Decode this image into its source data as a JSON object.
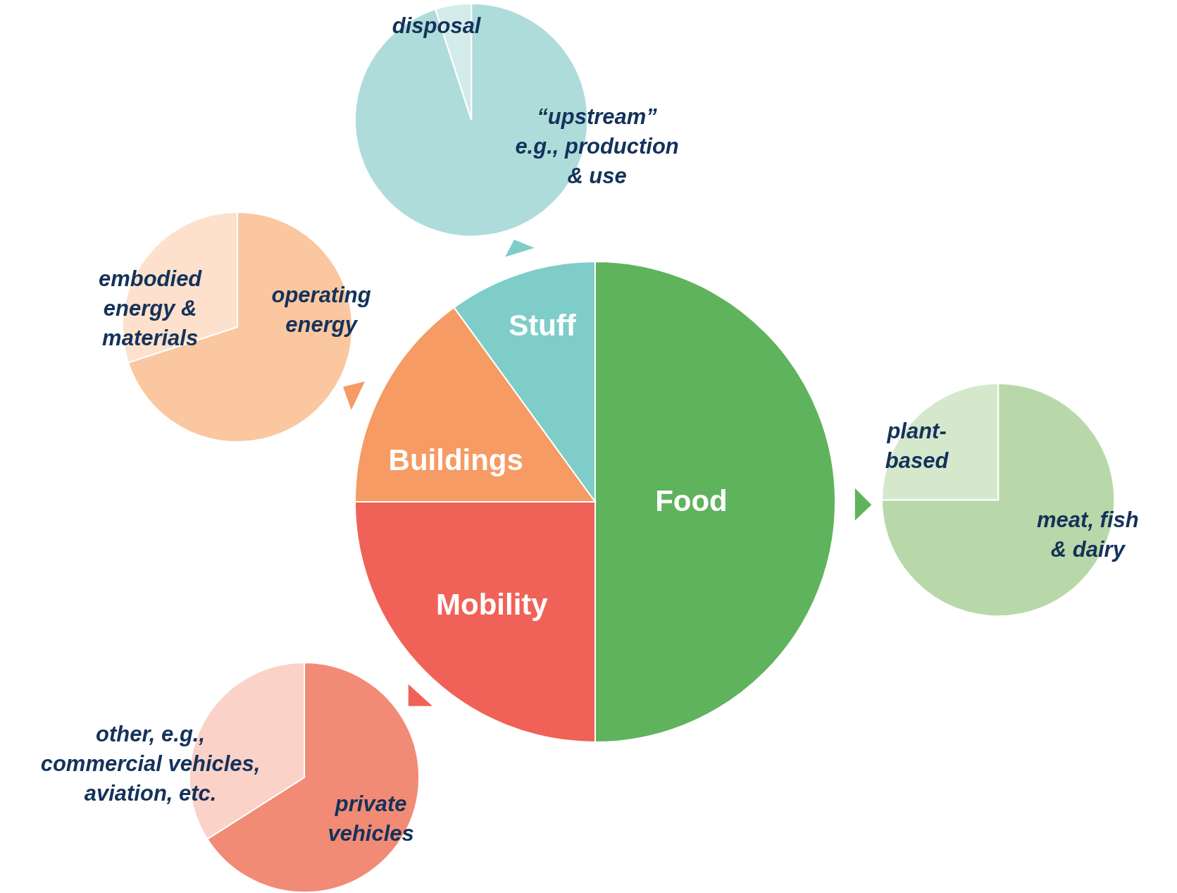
{
  "chart_data": [
    {
      "type": "pie",
      "categories": [
        "Food",
        "Mobility",
        "Buildings",
        "Stuff"
      ],
      "values": [
        50,
        25,
        15,
        10
      ],
      "colors": [
        "#5fb35c",
        "#f06257",
        "#f59b63",
        "#7ecdc9"
      ]
    },
    {
      "type": "pie",
      "categories": [
        "“upstream”\ne.g., production\n& use",
        "disposal"
      ],
      "values": [
        95,
        5
      ],
      "colors": [
        "#aedcda",
        "#d3ecea"
      ]
    },
    {
      "type": "pie",
      "categories": [
        "operating\nenergy",
        "embodied\nenergy &\nmaterials"
      ],
      "values": [
        70,
        30
      ],
      "colors": [
        "#fac7a0",
        "#fde1cd"
      ]
    },
    {
      "type": "pie",
      "categories": [
        "meat, fish\n& dairy",
        "plant-\nbased"
      ],
      "values": [
        75,
        25
      ],
      "colors": [
        "#b8d8aa",
        "#d5e8cc"
      ]
    },
    {
      "type": "pie",
      "categories": [
        "private\nvehicles",
        "other, e.g.,\ncommercial vehicles,\naviation, etc."
      ],
      "values": [
        66,
        34
      ],
      "colors": [
        "#f28b75",
        "#fad2c8"
      ]
    }
  ]
}
